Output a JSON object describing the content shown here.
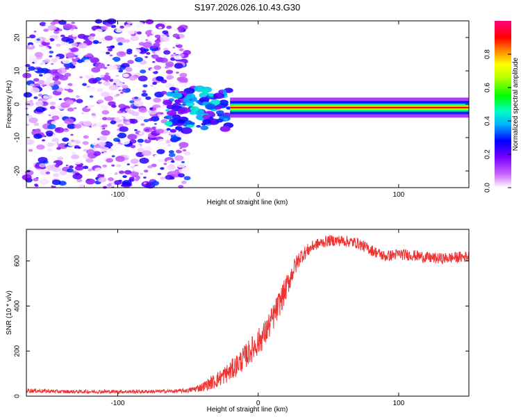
{
  "title": "S197.2026.026.10.43.G30",
  "chart_data": [
    {
      "type": "heatmap",
      "xlabel": "Height of straight line (km)",
      "ylabel": "Frequency (Hz)",
      "xlim": [
        -165,
        150
      ],
      "ylim": [
        -25,
        25
      ],
      "x_ticks": [
        -100,
        0,
        100
      ],
      "y_ticks": [
        -20,
        -10,
        0,
        10,
        20
      ],
      "colorbar": {
        "label": "Normalized spectral amplitude",
        "range": [
          0,
          1
        ],
        "ticks": [
          0.0,
          0.2,
          0.4,
          0.6,
          0.8
        ],
        "tick_labels": [
          "0.0",
          "0.2",
          "0.4",
          "0.6",
          "0.8"
        ]
      },
      "features": [
        {
          "x_range": [
            -165,
            -50
          ],
          "freq_range": [
            -25,
            25
          ],
          "amplitude": 0.15,
          "description": "noise"
        },
        {
          "x_range": [
            -65,
            -20
          ],
          "freq_range": [
            -8,
            5
          ],
          "amplitude": 0.3,
          "description": "transition"
        },
        {
          "x_range": [
            -20,
            150
          ],
          "freq_center": -1,
          "amplitude": 0.9,
          "description": "carrier line"
        }
      ]
    },
    {
      "type": "line",
      "xlabel": "Height of straight line (km)",
      "ylabel": "SNR (10 * v/v)",
      "xlim": [
        -165,
        150
      ],
      "ylim": [
        0,
        740
      ],
      "x_ticks": [
        -100,
        0,
        100
      ],
      "y_ticks": [
        0,
        200,
        400,
        600
      ],
      "series": [
        {
          "name": "SNR",
          "color": "#ee3333",
          "x": [
            -165,
            -140,
            -120,
            -100,
            -80,
            -60,
            -50,
            -40,
            -30,
            -20,
            -10,
            0,
            5,
            10,
            15,
            20,
            25,
            30,
            40,
            50,
            60,
            70,
            80,
            90,
            100,
            110,
            120,
            130,
            140,
            150
          ],
          "values": [
            25,
            20,
            20,
            20,
            20,
            22,
            25,
            40,
            70,
            110,
            170,
            240,
            280,
            340,
            410,
            480,
            560,
            620,
            670,
            690,
            690,
            680,
            650,
            620,
            630,
            625,
            615,
            610,
            615,
            620
          ],
          "noise_amplitude": [
            10,
            8,
            8,
            8,
            8,
            8,
            10,
            20,
            35,
            45,
            55,
            60,
            60,
            60,
            60,
            55,
            45,
            35,
            25,
            25,
            25,
            25,
            25,
            25,
            25,
            25,
            25,
            25,
            25,
            25
          ]
        }
      ]
    }
  ]
}
